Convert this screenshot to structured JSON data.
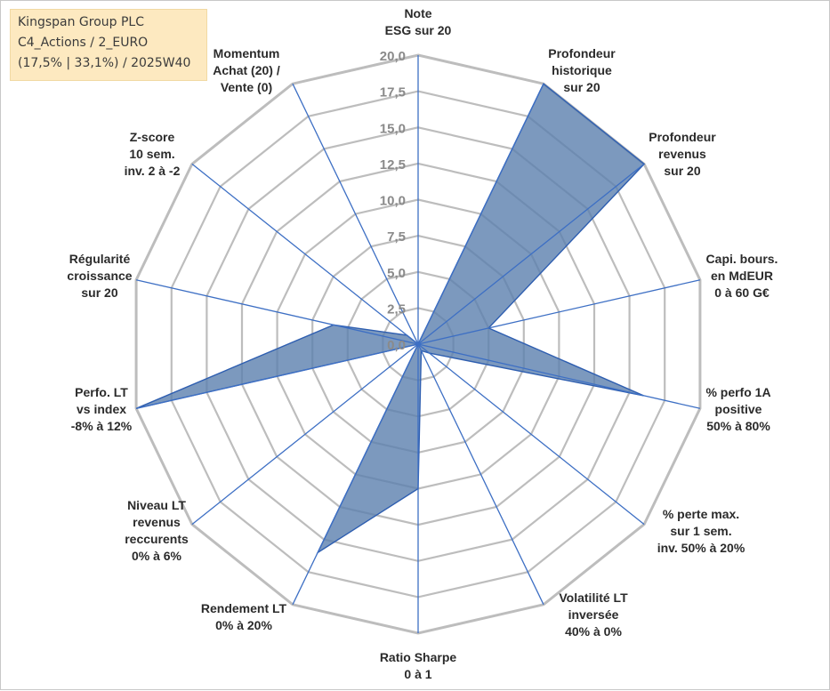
{
  "header": {
    "title": "Kingspan Group PLC",
    "subtitle": "C4_Actions / 2_EURO",
    "info": "(17,5% | 33,1%) / 2025W40"
  },
  "colors": {
    "fill": "#5b7fae",
    "series_line": "#2e5eb0",
    "spokes": "#3d6fc4",
    "grid": "#bdbdbd",
    "ticks": "#8a8a8a",
    "label": "#2b2b2b",
    "header_bg": "#fde9c0"
  },
  "chart_data": {
    "type": "radar",
    "rmin": 0,
    "rmax": 20,
    "tick_step": 2.5,
    "tick_labels": [
      "0,0",
      "2,5",
      "5,0",
      "7,5",
      "10,0",
      "12,5",
      "15,0",
      "17,5",
      "20,0"
    ],
    "axes": [
      {
        "label": [
          "Note",
          "ESG sur 20"
        ]
      },
      {
        "label": [
          "Profondeur",
          "historique",
          "sur 20"
        ]
      },
      {
        "label": [
          "Profondeur",
          "revenus",
          "sur 20"
        ]
      },
      {
        "label": [
          "Capi. bours.",
          "en MdEUR",
          "0 à 60 G€"
        ]
      },
      {
        "label": [
          "% perfo 1A",
          "positive",
          "50% à 80%"
        ]
      },
      {
        "label": [
          "% perte max.",
          "sur 1 sem.",
          "inv. 50% à 20%"
        ]
      },
      {
        "label": [
          "Volatilité LT",
          "inversée",
          "40% à 0%"
        ]
      },
      {
        "label": [
          "Ratio Sharpe",
          "0 à 1"
        ]
      },
      {
        "label": [
          "Rendement LT",
          "0% à 20%"
        ]
      },
      {
        "label": [
          "Niveau LT",
          "revenus",
          "reccurents",
          "0% à 6%"
        ]
      },
      {
        "label": [
          "Perfo. LT",
          "vs index",
          "-8% à 12%"
        ]
      },
      {
        "label": [
          "Régularité",
          "croissance",
          "sur 20"
        ]
      },
      {
        "label": [
          "Z-score",
          "10 sem.",
          "inv. 2 à -2"
        ]
      },
      {
        "label": [
          "Momentum",
          "Achat (20) /",
          "Vente (0)"
        ]
      }
    ],
    "series": [
      {
        "name": "Kingspan Group PLC",
        "values": [
          0,
          20,
          20,
          5,
          16,
          1,
          0.5,
          10,
          16,
          0,
          20,
          6,
          1,
          0
        ]
      }
    ]
  }
}
